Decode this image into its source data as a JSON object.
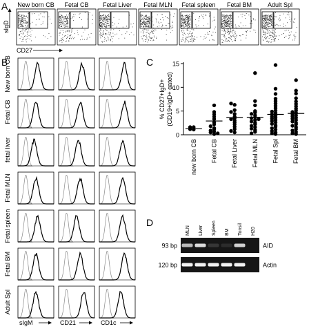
{
  "panel_letters": {
    "a": "A",
    "b": "B",
    "c": "C",
    "d": "D"
  },
  "panel_a": {
    "y_axis": "sIgD",
    "x_axis": "CD27",
    "tissues": [
      "New born CB",
      "Fetal CB",
      "Fetal Liver",
      "Fetal MLN",
      "Fetal spleen",
      "Fetal BM",
      "Adult Spl"
    ]
  },
  "panel_b": {
    "rows": [
      "New born CB",
      "Fetal CB",
      "fetal liver",
      "Fetal MLN",
      "Fetal spleen",
      "Fetal BM",
      "Adult Spl"
    ],
    "columns": [
      "sIgM",
      "CD21",
      "CD1c"
    ]
  },
  "chart_data": {
    "type": "scatter",
    "title": "",
    "ylabel_line1": "% CD27+IgD+",
    "ylabel_line2": "(CD19+IgD+ gated)",
    "ylim": [
      0,
      15
    ],
    "yticks": [
      "0",
      "5",
      "10",
      "15"
    ],
    "categories": [
      "new born CB",
      "Fetal CB",
      "Fetal Liver",
      "Fetal MLN",
      "Fetal Spl",
      "Fetal BM"
    ],
    "means": [
      1.3,
      2.9,
      3.6,
      3.7,
      4.3,
      4.5
    ],
    "points": [
      [
        1.1,
        1.6,
        1.2,
        1.6
      ],
      [
        6.2,
        4.8,
        4.3,
        3.8,
        3.3,
        2.6,
        2.2,
        1.8,
        1.4,
        1.2,
        0.9,
        0.7,
        0.5,
        0.3,
        0.15
      ],
      [
        6.3,
        5.2,
        4.8,
        4.4,
        3.8,
        3.5,
        3.3,
        3.0,
        2.6,
        2.2,
        1.7,
        1.2,
        0.8,
        0.5,
        6.6
      ],
      [
        13.0,
        7.1,
        6.2,
        5.0,
        4.7,
        4.4,
        4.1,
        3.7,
        3.5,
        3.3,
        3.1,
        2.8,
        2.5,
        2.2,
        1.9,
        1.6,
        1.3,
        1.0,
        0.6,
        0.3
      ],
      [
        14.7,
        9.7,
        8.6,
        7.6,
        7.1,
        6.6,
        6.1,
        5.6,
        5.1,
        4.9,
        4.6,
        4.3,
        4.0,
        3.8,
        3.6,
        3.4,
        3.1,
        2.9,
        2.6,
        2.3,
        2.0,
        1.7,
        1.4,
        1.1,
        0.8,
        0.5,
        0.3,
        0.15
      ],
      [
        11.5,
        9.3,
        8.7,
        7.7,
        7.0,
        6.5,
        6.0,
        5.5,
        5.1,
        4.8,
        4.6,
        4.4,
        4.1,
        3.9,
        3.6,
        3.4,
        3.1,
        2.8,
        2.5,
        2.2,
        1.9,
        1.6,
        1.2,
        0.9,
        0.6,
        0.3,
        0.15
      ]
    ]
  },
  "panel_d": {
    "lanes": [
      "MLN",
      "Liver",
      "Spleen",
      "BM",
      "Tonsil",
      "H20"
    ],
    "rows": [
      {
        "size": "93 bp",
        "gene": "AID",
        "band_intensity": [
          0.75,
          0.9,
          0.15,
          0.1,
          0.85,
          0.0
        ]
      },
      {
        "size": "120 bp",
        "gene": "Actin",
        "band_intensity": [
          1.0,
          1.0,
          1.0,
          1.0,
          1.0,
          0.0
        ]
      }
    ],
    "colors": {
      "gel": "#161616",
      "band": "#f2f2f2"
    }
  }
}
